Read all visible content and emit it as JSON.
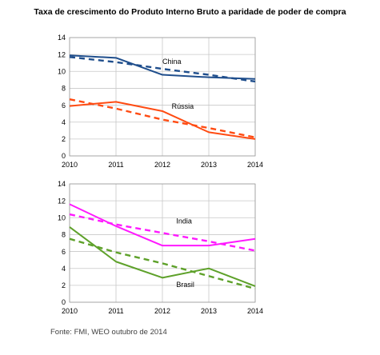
{
  "title": "Taxa de crescimento do Produto Interno Bruto a paridade de poder de compra",
  "source": "Fonte: FMI, WEO outubro de 2014",
  "chart_data": [
    {
      "type": "line",
      "x": [
        2010,
        2011,
        2012,
        2013,
        2014
      ],
      "xlim": [
        2010,
        2014
      ],
      "ylim": [
        0,
        14
      ],
      "yticks": [
        0,
        2,
        4,
        6,
        8,
        10,
        12,
        14
      ],
      "grid": true,
      "series": [
        {
          "name": "China",
          "color": "#1f4e8c",
          "style": "solid",
          "values": [
            11.9,
            11.6,
            9.6,
            9.3,
            9.1
          ]
        },
        {
          "name": "China",
          "color": "#1f4e8c",
          "style": "dashed",
          "values": [
            11.7,
            11.1,
            10.3,
            9.6,
            8.8
          ]
        },
        {
          "name": "Rússia",
          "color": "#ff4b12",
          "style": "solid",
          "values": [
            5.9,
            6.4,
            5.3,
            2.8,
            2.0
          ]
        },
        {
          "name": "Rússia",
          "color": "#ff4b12",
          "style": "dashed",
          "values": [
            6.7,
            5.6,
            4.3,
            3.3,
            2.2
          ]
        }
      ],
      "annotations": [
        {
          "text": "China",
          "x": 2012.0,
          "y": 10.9
        },
        {
          "text": "Rússia",
          "x": 2012.2,
          "y": 5.6
        }
      ]
    },
    {
      "type": "line",
      "x": [
        2010,
        2011,
        2012,
        2013,
        2014
      ],
      "xlim": [
        2010,
        2014
      ],
      "ylim": [
        0,
        14
      ],
      "yticks": [
        0,
        2,
        4,
        6,
        8,
        10,
        12,
        14
      ],
      "grid": true,
      "series": [
        {
          "name": "India",
          "color": "#ff19ff",
          "style": "solid",
          "values": [
            11.6,
            9.0,
            6.7,
            6.7,
            7.5
          ]
        },
        {
          "name": "India",
          "color": "#ff19ff",
          "style": "dashed",
          "values": [
            10.4,
            9.2,
            8.2,
            7.2,
            6.1
          ]
        },
        {
          "name": "Brasil",
          "color": "#5ea12a",
          "style": "solid",
          "values": [
            8.9,
            4.8,
            2.9,
            4.0,
            1.9
          ]
        },
        {
          "name": "Brasil",
          "color": "#5ea12a",
          "style": "dashed",
          "values": [
            7.5,
            5.9,
            4.6,
            3.1,
            1.6
          ]
        }
      ],
      "annotations": [
        {
          "text": "India",
          "x": 2012.3,
          "y": 9.3
        },
        {
          "text": "Brasil",
          "x": 2012.3,
          "y": 1.8
        }
      ]
    }
  ]
}
